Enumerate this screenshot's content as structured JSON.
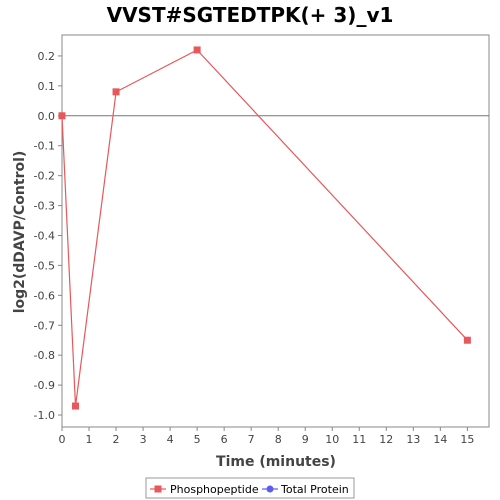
{
  "chart_data": {
    "type": "line",
    "title": "VVST#SGTEDTPK(+ 3)_v1",
    "xlabel": "Time (minutes)",
    "ylabel": "log2(dDAVP/Control)",
    "xlim": [
      0,
      15.8
    ],
    "ylim": [
      -1.04,
      0.27
    ],
    "x_ticks": [
      0,
      1,
      2,
      3,
      4,
      5,
      6,
      7,
      8,
      9,
      10,
      11,
      12,
      13,
      14,
      15
    ],
    "y_ticks": [
      0.2,
      0.1,
      0.0,
      -0.1,
      -0.2,
      -0.3,
      -0.4,
      -0.5,
      -0.6,
      -0.7,
      -0.8,
      -0.9,
      -1.0
    ],
    "y_tick_labels": [
      "0.2",
      "0.1",
      "0.0",
      "-0.1",
      "-0.2",
      "-0.3",
      "-0.4",
      "-0.5",
      "-0.6",
      "-0.7",
      "-0.8",
      "-0.9",
      "-1.0"
    ],
    "zero_line": true,
    "grid": false,
    "legend_position": "bottom",
    "series": [
      {
        "name": "Phosphopeptide",
        "color": "#e8575a",
        "marker": "square",
        "points": [
          {
            "x": 0,
            "y": 0.0
          },
          {
            "x": 0.5,
            "y": -0.97
          },
          {
            "x": 2,
            "y": 0.08
          },
          {
            "x": 5,
            "y": 0.22
          },
          {
            "x": 15,
            "y": -0.75
          }
        ]
      },
      {
        "name": "Total Protein",
        "color": "#5b5bf0",
        "marker": "circle",
        "points": []
      }
    ]
  }
}
